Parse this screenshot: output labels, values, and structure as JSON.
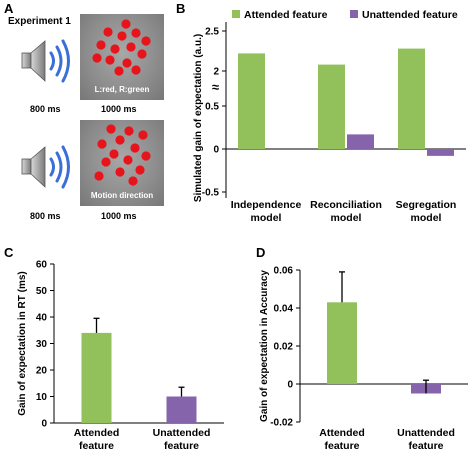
{
  "panelA": {
    "letter": "A",
    "experiment_label": "Experiment 1",
    "trial1": {
      "caption": "L:red, R:green",
      "sound_time": "800 ms",
      "stim_time": "1000 ms"
    },
    "trial2": {
      "caption": "Motion direction",
      "sound_time": "800 ms",
      "stim_time": "1000 ms"
    },
    "dot_color": "#e8141c",
    "icons": [
      "speaker-icon"
    ]
  },
  "panelB": {
    "letter": "B"
  },
  "panelC": {
    "letter": "C"
  },
  "panelD": {
    "letter": "D"
  },
  "colors": {
    "attended": "#92c05a",
    "unattended": "#8664ac"
  },
  "chart_data": [
    {
      "id": "B",
      "type": "bar",
      "categories": [
        [
          "Independence",
          "model"
        ],
        [
          "Reconciliation",
          "model"
        ],
        [
          "Segregation",
          "model"
        ]
      ],
      "series": [
        {
          "name": "Attended feature",
          "values": [
            2.22,
            2.08,
            2.28
          ]
        },
        {
          "name": "Unattended feature",
          "values": [
            0,
            0.17,
            -0.08
          ]
        }
      ],
      "ylabel": "Simulated gain of expectation (a.u.)",
      "xlabel": "",
      "yticks": [
        "-0.5",
        "0",
        "0.5",
        "≈",
        "2",
        "2.5"
      ],
      "axis_break": true,
      "legend": "top"
    },
    {
      "id": "C",
      "type": "bar",
      "categories": [
        [
          "Attended",
          "feature"
        ],
        [
          "Unattended",
          "feature"
        ]
      ],
      "values": [
        34,
        10
      ],
      "errors": [
        5.5,
        3.5
      ],
      "ylabel": "Gain of expectation in RT (ms)",
      "ylim": [
        0,
        60
      ],
      "yticks": [
        "0",
        "10",
        "20",
        "30",
        "40",
        "50",
        "60"
      ]
    },
    {
      "id": "D",
      "type": "bar",
      "categories": [
        [
          "Attended",
          "feature"
        ],
        [
          "Unattended",
          "feature"
        ]
      ],
      "values": [
        0.043,
        -0.005
      ],
      "errors": [
        0.016,
        0.007
      ],
      "ylabel": "Gain of expectation in Accuracy",
      "ylim": [
        -0.02,
        0.06
      ],
      "yticks": [
        "-0.02",
        "0",
        "0.02",
        "0.04",
        "0.06"
      ]
    }
  ]
}
